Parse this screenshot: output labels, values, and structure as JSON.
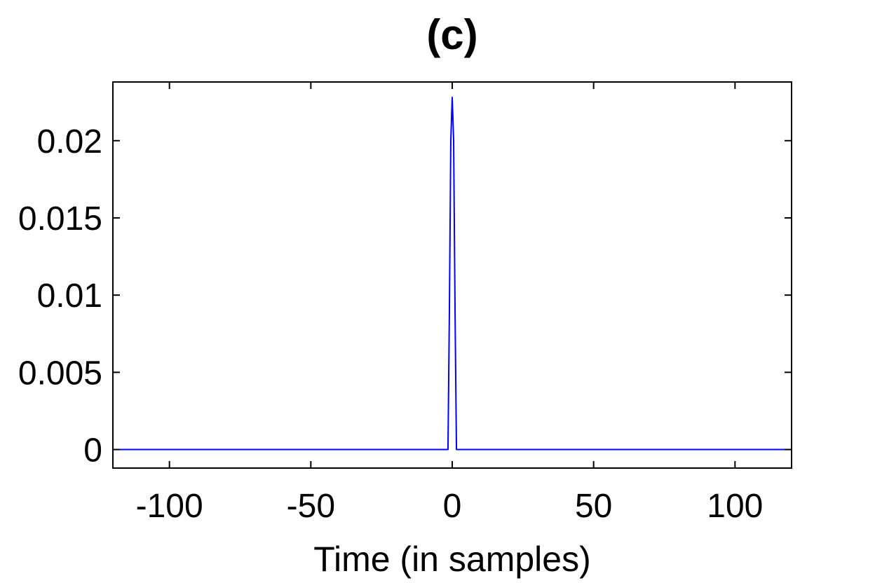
{
  "chart_data": {
    "type": "line",
    "title": "(c)",
    "xlabel": "Time (in samples)",
    "ylabel": "",
    "xlim": [
      -120,
      120
    ],
    "ylim": [
      -0.0012,
      0.0238
    ],
    "xticks": [
      -100,
      -50,
      0,
      50,
      100
    ],
    "xtick_labels": [
      "-100",
      "-50",
      "0",
      "50",
      "100"
    ],
    "yticks": [
      0,
      0.005,
      0.01,
      0.015,
      0.02
    ],
    "ytick_labels": [
      "0",
      "0.005",
      "0.01",
      "0.015",
      "0.02"
    ],
    "grid": false,
    "legend": "none",
    "series": [
      {
        "color": "#0000ff",
        "x": [
          -120,
          -1.5,
          -1,
          -0.5,
          0,
          0.5,
          1,
          1.5,
          120
        ],
        "y": [
          0,
          0,
          0.009,
          0.02,
          0.0228,
          0.02,
          0.009,
          0,
          0
        ]
      }
    ]
  }
}
